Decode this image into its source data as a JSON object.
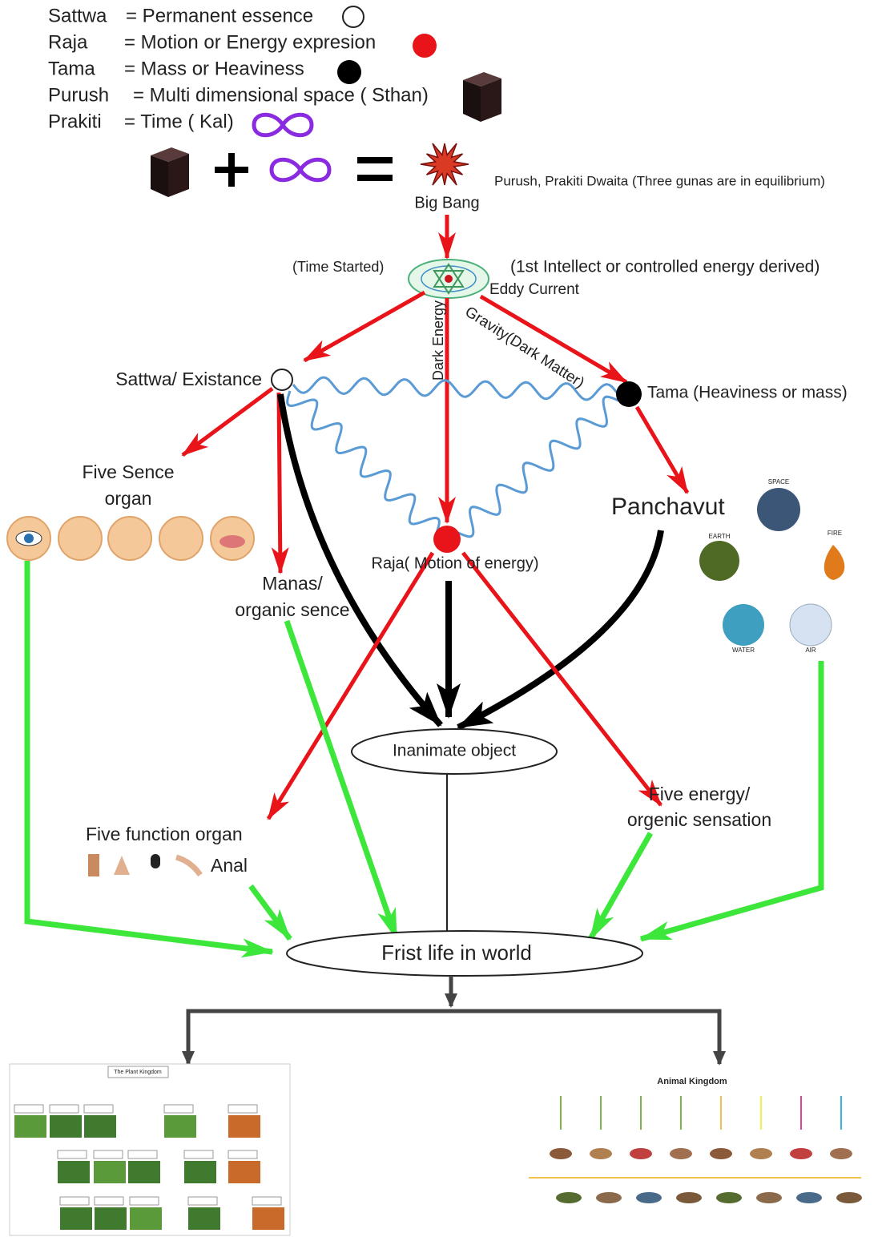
{
  "legend": [
    {
      "term": "Sattwa",
      "definition": "= Permanent essence"
    },
    {
      "term": "Raja",
      "definition": "= Motion or Energy expresion"
    },
    {
      "term": "Tama",
      "definition": "= Mass or Heaviness"
    },
    {
      "term": "Purush",
      "definition": "= Multi dimensional space ( Sthan)"
    },
    {
      "term": "Prakiti",
      "definition": "= Time ( Kal)"
    }
  ],
  "equation": {
    "result": "Big Bang",
    "note": "Purush, Prakiti Dwaita (Three gunas are in equilibrium)"
  },
  "eddy": {
    "left_note": "(Time Started)",
    "right_note": "(1st Intellect or controlled energy derived)",
    "label": "Eddy Current"
  },
  "edge_labels": {
    "dark_energy": "Dark Energy",
    "gravity": "Gravity(Dark Matter)"
  },
  "nodes": {
    "sattwa": "Sattwa/ Existance",
    "tama": "Tama (Heaviness or mass)",
    "raja": "Raja( Motion of energy)",
    "sense_organs": [
      "Five Sence",
      "organ"
    ],
    "manas": [
      "Manas/",
      "organic sence"
    ],
    "panchavut": "Panchavut",
    "inanimate": "Inanimate object",
    "function_organs": "Five function organ",
    "anal": "Anal",
    "energy": [
      "Five energy/",
      "orgenic sensation"
    ],
    "first_life": "Frist life in world"
  },
  "elements": [
    "SPACE",
    "EARTH",
    "FIRE",
    "WATER",
    "AIR"
  ],
  "kingdoms": {
    "plant": "The Plant Kingdom",
    "animal": "Animal Kingdom"
  }
}
